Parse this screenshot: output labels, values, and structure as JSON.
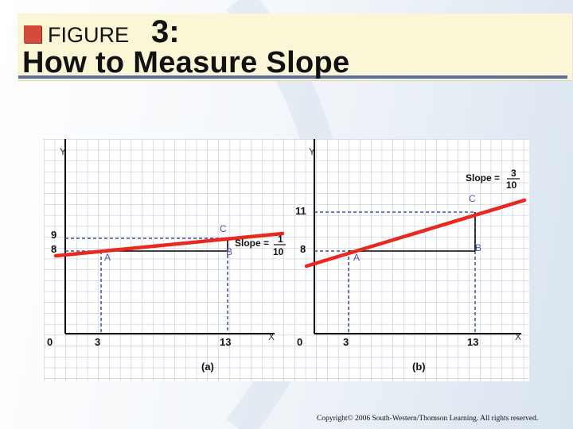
{
  "header": {
    "figure_label": "FIGURE",
    "figure_number": "3:",
    "title": "How to Measure Slope"
  },
  "panel_a": {
    "caption": "(a)",
    "y_axis_label": "Y",
    "x_axis_label": "X",
    "origin_label": "0",
    "y_ticks": [
      "9",
      "8"
    ],
    "x_ticks": [
      "3",
      "13"
    ],
    "point_a": "A",
    "point_b": "B",
    "point_c": "C",
    "slope_text": "Slope =",
    "slope_num": "1",
    "slope_den": "10"
  },
  "panel_b": {
    "caption": "(b)",
    "y_axis_label": "Y",
    "x_axis_label": "X",
    "origin_label": "0",
    "y_ticks": [
      "11",
      "8"
    ],
    "x_ticks": [
      "3",
      "13"
    ],
    "point_a": "A",
    "point_b": "B",
    "point_c": "C",
    "slope_text": "Slope =",
    "slope_num": "3",
    "slope_den": "10"
  },
  "footer": {
    "copyright": "Copyright© 2006 South-Western/Thomson Learning. All rights reserved."
  },
  "colors": {
    "line": "#e8291f",
    "dashed": "#3f4fa0",
    "grid": "#b8bfd6",
    "title_bg": "#fbf7d6",
    "title_accent": "#d44b3b"
  }
}
